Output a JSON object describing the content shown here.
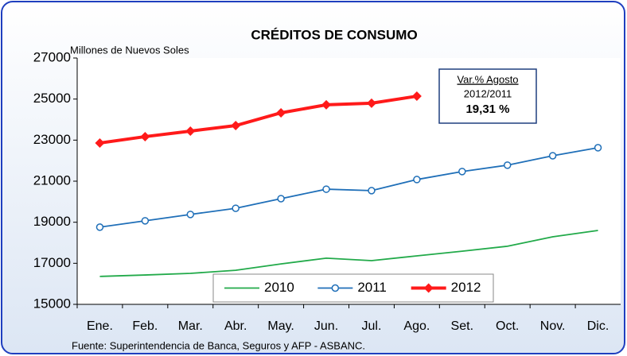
{
  "chart_data": {
    "type": "line",
    "title": "CRÉDITOS DE CONSUMO",
    "y_label": "Millones de Nuevos Soles",
    "source": "Fuente: Superintendencia de Banca, Seguros y AFP - ASBANC.",
    "annotation": [
      "Var.% Agosto",
      "2012/2011",
      "19,31 %"
    ],
    "categories": [
      "Ene.",
      "Feb.",
      "Mar.",
      "Abr.",
      "May.",
      "Jun.",
      "Jul.",
      "Ago.",
      "Set.",
      "Oct.",
      "Nov.",
      "Dic."
    ],
    "series": [
      {
        "name": "2010",
        "color": "#22aa4a",
        "values": [
          16360,
          16430,
          16510,
          16660,
          16970,
          17250,
          17130,
          17360,
          17590,
          17830,
          18290,
          18600
        ]
      },
      {
        "name": "2011",
        "color": "#1f6fb8",
        "marker": "circle",
        "values": [
          18760,
          19070,
          19380,
          19680,
          20150,
          20610,
          20540,
          21080,
          21470,
          21780,
          22240,
          22630
        ]
      },
      {
        "name": "2012",
        "color": "#ff1a1a",
        "marker": "diamond",
        "values": [
          22860,
          23170,
          23440,
          23710,
          24330,
          24720,
          24800,
          25140,
          null,
          null,
          null,
          null
        ]
      }
    ],
    "ylim": [
      15000,
      27000
    ],
    "yticks": [
      15000,
      17000,
      19000,
      21000,
      23000,
      25000,
      27000
    ],
    "grid": false
  }
}
